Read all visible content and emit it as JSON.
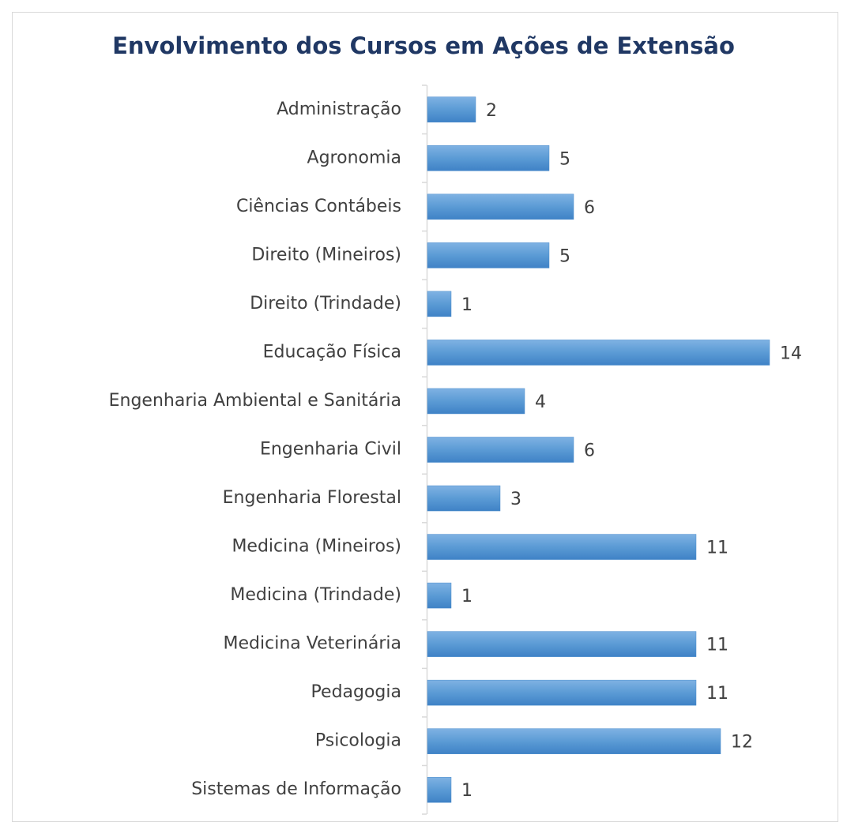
{
  "chart_data": {
    "type": "bar",
    "orientation": "horizontal",
    "title": "Envolvimento dos Cursos em Ações de Extensão",
    "categories": [
      "Administração",
      "Agronomia",
      "Ciências Contábeis",
      "Direito (Mineiros)",
      "Direito (Trindade)",
      "Educação Física",
      "Engenharia Ambiental e Sanitária",
      "Engenharia Civil",
      "Engenharia Florestal",
      "Medicina (Mineiros)",
      "Medicina (Trindade)",
      "Medicina Veterinária",
      "Pedagogia",
      "Psicologia",
      "Sistemas de Informação"
    ],
    "values": [
      2,
      5,
      6,
      5,
      1,
      14,
      4,
      6,
      3,
      11,
      1,
      11,
      11,
      12,
      1
    ],
    "color": "#5b9bd5"
  }
}
